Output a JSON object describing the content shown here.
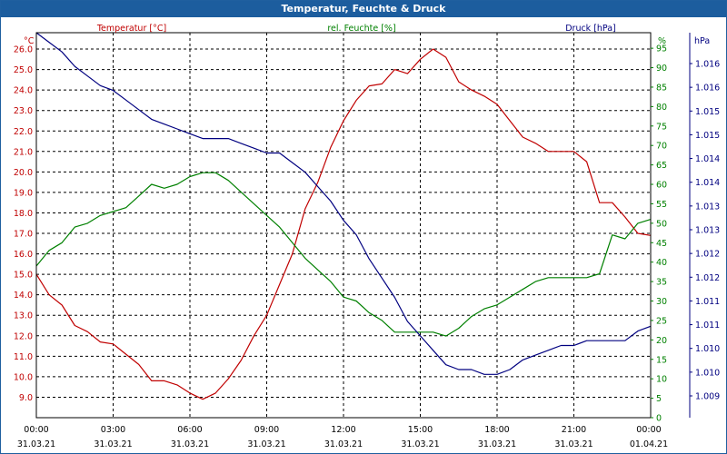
{
  "window": {
    "title": "Temperatur, Feuchte & Druck"
  },
  "chart_data": {
    "type": "line",
    "title": "Temperatur, Feuchte & Druck",
    "x_range_hours": [
      0,
      24
    ],
    "x_ticks": [
      {
        "h": 0,
        "time": "00:00",
        "date": "31.03.21"
      },
      {
        "h": 3,
        "time": "03:00",
        "date": "31.03.21"
      },
      {
        "h": 6,
        "time": "06:00",
        "date": "31.03.21"
      },
      {
        "h": 9,
        "time": "09:00",
        "date": "31.03.21"
      },
      {
        "h": 12,
        "time": "12:00",
        "date": "31.03.21"
      },
      {
        "h": 15,
        "time": "15:00",
        "date": "31.03.21"
      },
      {
        "h": 18,
        "time": "18:00",
        "date": "31.03.21"
      },
      {
        "h": 21,
        "time": "21:00",
        "date": "31.03.21"
      },
      {
        "h": 24,
        "time": "00:00",
        "date": "01.04.21"
      }
    ],
    "axes": {
      "temperature": {
        "label": "Temperatur [°C]",
        "unit": "°C",
        "color": "#c00000",
        "range": [
          8.0,
          26.8
        ],
        "ticks": [
          "9.0",
          "10.0",
          "11.0",
          "12.0",
          "13.0",
          "14.0",
          "15.0",
          "16.0",
          "17.0",
          "18.0",
          "19.0",
          "20.0",
          "21.0",
          "22.0",
          "23.0",
          "24.0",
          "25.0",
          "26.0"
        ]
      },
      "humidity": {
        "label": "rel. Feuchte [%]",
        "unit": "%",
        "color": "#008000",
        "range": [
          0,
          99
        ],
        "ticks": [
          "0",
          "5",
          "10",
          "15",
          "20",
          "25",
          "30",
          "35",
          "40",
          "45",
          "50",
          "55",
          "60",
          "65",
          "70",
          "75",
          "80",
          "85",
          "90",
          "95"
        ]
      },
      "pressure": {
        "label": "Druck [hPa]",
        "unit": "hPa",
        "color": "#000080",
        "range": [
          1008.2,
          1016.2
        ],
        "ticks": [
          "1.009",
          "1.010",
          "1.010",
          "1.011",
          "1.011",
          "1.012",
          "1.012",
          "1.013",
          "1.013",
          "1.014",
          "1.014",
          "1.015",
          "1.015",
          "1.016",
          "1.016"
        ]
      }
    },
    "series": [
      {
        "name": "Temperatur",
        "axis": "temperature",
        "color": "#c00000",
        "x": [
          0,
          0.5,
          1,
          1.5,
          2,
          2.5,
          3,
          3.5,
          4,
          4.5,
          5,
          5.5,
          6,
          6.5,
          7,
          7.5,
          8,
          8.5,
          9,
          9.5,
          10,
          10.5,
          11,
          11.5,
          12,
          12.5,
          13,
          13.5,
          14,
          14.5,
          15,
          15.5,
          16,
          16.5,
          17,
          17.5,
          18,
          18.5,
          19,
          19.5,
          20,
          20.5,
          21,
          21.5,
          22,
          22.5,
          23,
          23.5,
          24
        ],
        "values": [
          15.0,
          14.0,
          13.5,
          12.5,
          12.2,
          11.7,
          11.6,
          11.1,
          10.6,
          9.8,
          9.8,
          9.6,
          9.2,
          8.9,
          9.2,
          9.9,
          10.8,
          12.0,
          13.0,
          14.5,
          16.0,
          18.2,
          19.5,
          21.2,
          22.5,
          23.5,
          24.2,
          24.3,
          25.0,
          24.8,
          25.5,
          26.0,
          25.6,
          24.4,
          24.0,
          23.7,
          23.3,
          22.5,
          21.7,
          21.4,
          21.0,
          21.0,
          21.0,
          20.5,
          18.5,
          18.5,
          17.8,
          17.0,
          16.9
        ]
      },
      {
        "name": "rel. Feuchte",
        "axis": "humidity",
        "color": "#008000",
        "x": [
          0,
          0.5,
          1,
          1.5,
          2,
          2.5,
          3,
          3.5,
          4,
          4.5,
          5,
          5.5,
          6,
          6.5,
          7,
          7.5,
          8,
          8.5,
          9,
          9.5,
          10,
          10.5,
          11,
          11.5,
          12,
          12.5,
          13,
          13.5,
          14,
          14.5,
          15,
          15.5,
          16,
          16.5,
          17,
          17.5,
          18,
          18.5,
          19,
          19.5,
          20,
          20.5,
          21,
          21.5,
          22,
          22.5,
          23,
          23.5,
          24
        ],
        "values": [
          39,
          43,
          45,
          49,
          50,
          52,
          53,
          54,
          57,
          60,
          59,
          60,
          62,
          63,
          63,
          61,
          58,
          55,
          52,
          49,
          45,
          41,
          38,
          35,
          31,
          30,
          27,
          25,
          22,
          22,
          22,
          22,
          21,
          23,
          26,
          28,
          29,
          31,
          33,
          35,
          36,
          36,
          36,
          36,
          37,
          47,
          46,
          50,
          51
        ]
      },
      {
        "name": "Druck",
        "axis": "pressure",
        "color": "#000080",
        "x": [
          0,
          0.5,
          1,
          1.5,
          2,
          2.5,
          3,
          3.5,
          4,
          4.5,
          5,
          5.5,
          6,
          6.5,
          7,
          7.5,
          8,
          8.5,
          9,
          9.5,
          10,
          10.5,
          11,
          11.5,
          12,
          12.5,
          13,
          13.5,
          14,
          14.5,
          15,
          15.5,
          16,
          16.5,
          17,
          17.5,
          18,
          18.5,
          19,
          19.5,
          20,
          20.5,
          21,
          21.5,
          22,
          22.5,
          23,
          23.5,
          24
        ],
        "values": [
          1016.2,
          1016.0,
          1015.8,
          1015.5,
          1015.3,
          1015.1,
          1015.0,
          1014.8,
          1014.6,
          1014.4,
          1014.3,
          1014.2,
          1014.1,
          1014.0,
          1014.0,
          1014.0,
          1013.9,
          1013.8,
          1013.7,
          1013.7,
          1013.5,
          1013.3,
          1013.0,
          1012.7,
          1012.3,
          1012.0,
          1011.5,
          1011.1,
          1010.7,
          1010.2,
          1009.9,
          1009.6,
          1009.3,
          1009.2,
          1009.2,
          1009.1,
          1009.1,
          1009.2,
          1009.4,
          1009.5,
          1009.6,
          1009.7,
          1009.7,
          1009.8,
          1009.8,
          1009.8,
          1009.8,
          1010.0,
          1010.1
        ]
      }
    ],
    "grid": true
  }
}
